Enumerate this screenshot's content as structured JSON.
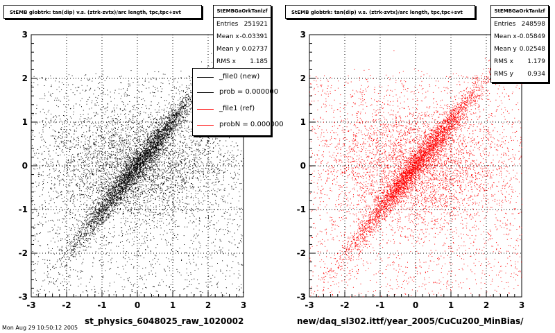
{
  "chart_data": [
    {
      "type": "scatter",
      "title": "StEMB globtrk: tan(dip) v.s. (ztrk-zvtx)/arc length, tpc,tpc+svt",
      "xlim": [
        -3,
        3
      ],
      "ylim": [
        -3,
        3
      ],
      "xticks": [
        "-3",
        "-2",
        "-1",
        "0",
        "1",
        "2",
        "3"
      ],
      "yticks": [
        "-3",
        "-2",
        "-1",
        "0",
        "1",
        "2",
        "3"
      ],
      "grid": true,
      "color": "#000000",
      "points_note": "",
      "stats": {
        "title": "StEMBGaOrkTanlzf",
        "rows": [
          {
            "k": "Entries",
            "v": "251921"
          },
          {
            "k": "Mean x",
            "v": "-0.03391"
          },
          {
            "k": "Mean y",
            "v": "0.02737"
          },
          {
            "k": "RMS x",
            "v": "1.185"
          }
        ]
      },
      "xlabel": "st_physics_6048025_raw_1020002"
    },
    {
      "type": "scatter",
      "title": "StEMB globtrk: tan(dip) v.s. (ztrk-zvtx)/arc length, tpc,tpc+svt",
      "xlim": [
        -3,
        3
      ],
      "ylim": [
        -3,
        3
      ],
      "xticks": [
        "-3",
        "-2",
        "-1",
        "0",
        "1",
        "2",
        "3"
      ],
      "yticks": [
        "-3",
        "-2",
        "-1",
        "0",
        "1",
        "2",
        "3"
      ],
      "grid": true,
      "color": "#ff0000",
      "stats": {
        "title": "StEMBGaOrkTanlzf",
        "rows": [
          {
            "k": "Entries",
            "v": "248598"
          },
          {
            "k": "Mean x",
            "v": "-0.05849"
          },
          {
            "k": "Mean y",
            "v": "0.02548"
          },
          {
            "k": "RMS x",
            "v": "1.179"
          },
          {
            "k": "RMS y",
            "v": "0.934"
          }
        ]
      },
      "xlabel": "new/daq_sl302.ittf/year_2005/CuCu200_MinBias/"
    }
  ],
  "legend": {
    "entries": [
      {
        "label": "_file0 (new)",
        "color": "#000000"
      },
      {
        "label": "prob = 0.000000",
        "color": "#000000"
      },
      {
        "label": "_file1 (ref)",
        "color": "#ff0000"
      },
      {
        "label": "probN = 0.000000",
        "color": "#ff0000"
      }
    ]
  },
  "footer": "Mon Aug 29 10:50:12 2005"
}
